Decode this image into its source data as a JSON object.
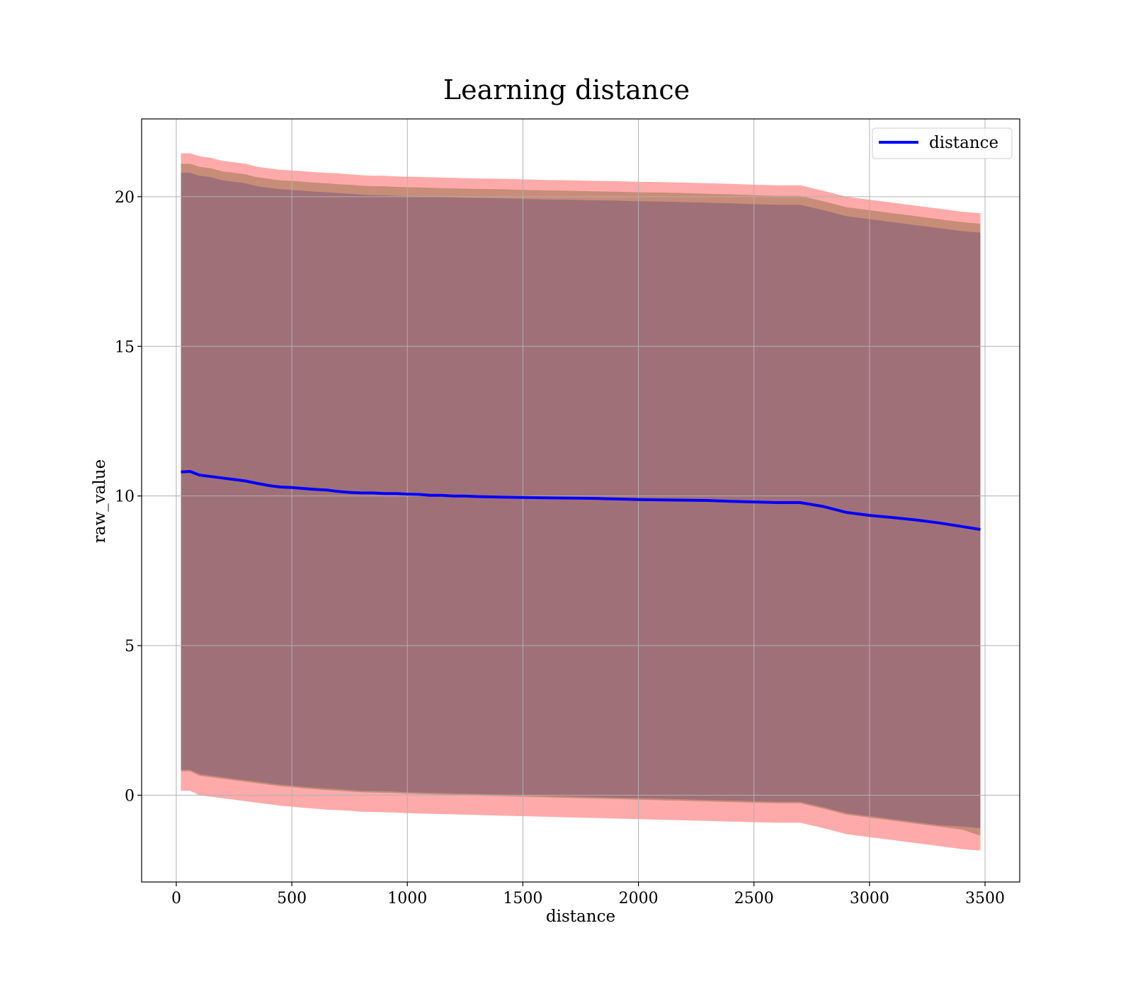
{
  "chart_data": {
    "type": "line",
    "title": "Learning distance",
    "xlabel": "distance",
    "ylabel": "raw_value",
    "xlim": [
      -150,
      3650
    ],
    "ylim": [
      -2.9,
      22.6
    ],
    "xticks": [
      0,
      500,
      1000,
      1500,
      2000,
      2500,
      3000,
      3500
    ],
    "yticks": [
      0,
      5,
      10,
      15,
      20
    ],
    "grid": true,
    "legend": "top-right",
    "colors": {
      "line": "#0000ff",
      "band_outer": "#ffaaaa",
      "band_middle": "#c88d78",
      "band_inner": "#a07078",
      "grid": "#b0b0b0"
    },
    "x": [
      20,
      60,
      100,
      150,
      200,
      250,
      300,
      350,
      400,
      450,
      500,
      550,
      600,
      650,
      700,
      750,
      800,
      850,
      900,
      950,
      1000,
      1050,
      1100,
      1150,
      1200,
      1250,
      1300,
      1400,
      1500,
      1600,
      1700,
      1800,
      1900,
      2000,
      2100,
      2200,
      2300,
      2400,
      2500,
      2600,
      2700,
      2800,
      2900,
      3000,
      3100,
      3200,
      3300,
      3400,
      3480
    ],
    "series": [
      {
        "name": "distance",
        "values": [
          10.8,
          10.82,
          10.7,
          10.65,
          10.6,
          10.55,
          10.5,
          10.42,
          10.35,
          10.3,
          10.28,
          10.25,
          10.22,
          10.2,
          10.15,
          10.12,
          10.1,
          10.1,
          10.08,
          10.08,
          10.06,
          10.05,
          10.02,
          10.02,
          10.0,
          10.0,
          9.98,
          9.96,
          9.95,
          9.94,
          9.93,
          9.92,
          9.9,
          9.88,
          9.87,
          9.86,
          9.85,
          9.82,
          9.8,
          9.78,
          9.78,
          9.65,
          9.45,
          9.35,
          9.28,
          9.2,
          9.1,
          8.98,
          8.88
        ]
      }
    ],
    "bands": [
      {
        "level": "outer",
        "upper": [
          21.45,
          21.45,
          21.35,
          21.3,
          21.2,
          21.15,
          21.1,
          21.0,
          20.95,
          20.9,
          20.88,
          20.85,
          20.82,
          20.8,
          20.78,
          20.75,
          20.72,
          20.7,
          20.7,
          20.68,
          20.67,
          20.66,
          20.65,
          20.64,
          20.63,
          20.62,
          20.61,
          20.6,
          20.58,
          20.56,
          20.55,
          20.53,
          20.52,
          20.5,
          20.49,
          20.47,
          20.45,
          20.43,
          20.4,
          20.38,
          20.38,
          20.2,
          20.0,
          19.9,
          19.8,
          19.7,
          19.6,
          19.5,
          19.45
        ],
        "lower": [
          0.15,
          0.15,
          0.0,
          -0.05,
          -0.1,
          -0.15,
          -0.2,
          -0.25,
          -0.3,
          -0.35,
          -0.38,
          -0.42,
          -0.45,
          -0.48,
          -0.5,
          -0.52,
          -0.55,
          -0.56,
          -0.57,
          -0.58,
          -0.6,
          -0.61,
          -0.62,
          -0.63,
          -0.64,
          -0.65,
          -0.66,
          -0.68,
          -0.7,
          -0.72,
          -0.74,
          -0.76,
          -0.78,
          -0.8,
          -0.82,
          -0.84,
          -0.86,
          -0.88,
          -0.9,
          -0.92,
          -0.92,
          -1.1,
          -1.3,
          -1.4,
          -1.5,
          -1.6,
          -1.7,
          -1.8,
          -1.85
        ]
      },
      {
        "level": "middle",
        "upper": [
          21.1,
          21.1,
          21.0,
          20.95,
          20.85,
          20.8,
          20.75,
          20.65,
          20.6,
          20.55,
          20.53,
          20.5,
          20.47,
          20.45,
          20.42,
          20.4,
          20.37,
          20.35,
          20.35,
          20.33,
          20.32,
          20.31,
          20.3,
          20.29,
          20.28,
          20.27,
          20.26,
          20.25,
          20.23,
          20.21,
          20.2,
          20.18,
          20.17,
          20.15,
          20.14,
          20.12,
          20.1,
          20.08,
          20.05,
          20.03,
          20.03,
          19.85,
          19.65,
          19.55,
          19.45,
          19.35,
          19.25,
          19.15,
          19.1
        ],
        "lower": [
          0.8,
          0.8,
          0.65,
          0.6,
          0.55,
          0.5,
          0.45,
          0.4,
          0.35,
          0.3,
          0.27,
          0.23,
          0.2,
          0.17,
          0.15,
          0.12,
          0.1,
          0.09,
          0.08,
          0.07,
          0.05,
          0.04,
          0.03,
          0.02,
          0.01,
          0.0,
          -0.01,
          -0.03,
          -0.05,
          -0.07,
          -0.09,
          -0.11,
          -0.13,
          -0.15,
          -0.17,
          -0.19,
          -0.21,
          -0.23,
          -0.25,
          -0.27,
          -0.27,
          -0.45,
          -0.65,
          -0.75,
          -0.85,
          -0.95,
          -1.05,
          -1.15,
          -1.35
        ]
      },
      {
        "level": "inner",
        "upper": [
          20.8,
          20.8,
          20.7,
          20.65,
          20.55,
          20.5,
          20.45,
          20.35,
          20.3,
          20.25,
          20.23,
          20.2,
          20.17,
          20.15,
          20.12,
          20.1,
          20.07,
          20.05,
          20.05,
          20.03,
          20.02,
          20.01,
          20.0,
          19.99,
          19.98,
          19.97,
          19.96,
          19.95,
          19.93,
          19.91,
          19.9,
          19.88,
          19.87,
          19.85,
          19.84,
          19.82,
          19.8,
          19.78,
          19.75,
          19.73,
          19.73,
          19.55,
          19.35,
          19.25,
          19.15,
          19.05,
          18.95,
          18.85,
          18.8
        ],
        "lower": [
          0.85,
          0.85,
          0.7,
          0.65,
          0.6,
          0.55,
          0.5,
          0.45,
          0.4,
          0.35,
          0.32,
          0.28,
          0.25,
          0.22,
          0.2,
          0.17,
          0.15,
          0.14,
          0.13,
          0.12,
          0.1,
          0.09,
          0.08,
          0.07,
          0.06,
          0.05,
          0.04,
          0.02,
          0.0,
          -0.02,
          -0.04,
          -0.06,
          -0.08,
          -0.1,
          -0.12,
          -0.14,
          -0.16,
          -0.18,
          -0.2,
          -0.22,
          -0.22,
          -0.4,
          -0.6,
          -0.7,
          -0.8,
          -0.9,
          -1.0,
          -1.05,
          -1.1
        ]
      }
    ]
  }
}
